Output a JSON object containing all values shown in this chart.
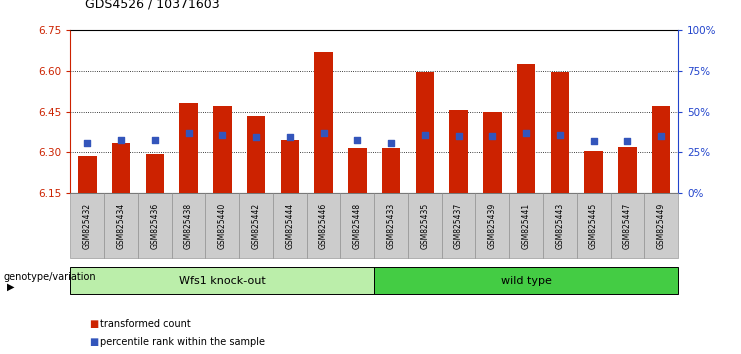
{
  "title": "GDS4526 / 10371603",
  "samples": [
    "GSM825432",
    "GSM825434",
    "GSM825436",
    "GSM825438",
    "GSM825440",
    "GSM825442",
    "GSM825444",
    "GSM825446",
    "GSM825448",
    "GSM825433",
    "GSM825435",
    "GSM825437",
    "GSM825439",
    "GSM825441",
    "GSM825443",
    "GSM825445",
    "GSM825447",
    "GSM825449"
  ],
  "red_values": [
    6.285,
    6.335,
    6.295,
    6.48,
    6.47,
    6.435,
    6.345,
    6.67,
    6.315,
    6.315,
    6.595,
    6.455,
    6.45,
    6.625,
    6.595,
    6.305,
    6.32,
    6.47
  ],
  "blue_values": [
    6.335,
    6.345,
    6.345,
    6.37,
    6.365,
    6.355,
    6.355,
    6.37,
    6.345,
    6.335,
    6.365,
    6.36,
    6.36,
    6.37,
    6.365,
    6.34,
    6.34,
    6.36
  ],
  "ylim_left": [
    6.15,
    6.75
  ],
  "ylim_right": [
    0,
    100
  ],
  "yticks_left": [
    6.15,
    6.3,
    6.45,
    6.6,
    6.75
  ],
  "yticks_right": [
    0,
    25,
    50,
    75,
    100
  ],
  "ytick_labels_right": [
    "0%",
    "25%",
    "50%",
    "75%",
    "100%"
  ],
  "baseline": 6.15,
  "bar_color": "#cc2200",
  "blue_color": "#3355bb",
  "group1_label": "Wfs1 knock-out",
  "group2_label": "wild type",
  "group1_color": "#bbeeaa",
  "group2_color": "#44cc44",
  "group_label_prefix": "genotype/variation",
  "legend_red": "transformed count",
  "legend_blue": "percentile rank within the sample",
  "bar_width": 0.55,
  "left_axis_color": "#cc2200",
  "right_axis_color": "#2244cc",
  "background_color": "#ffffff",
  "tick_bg_color": "#cccccc"
}
